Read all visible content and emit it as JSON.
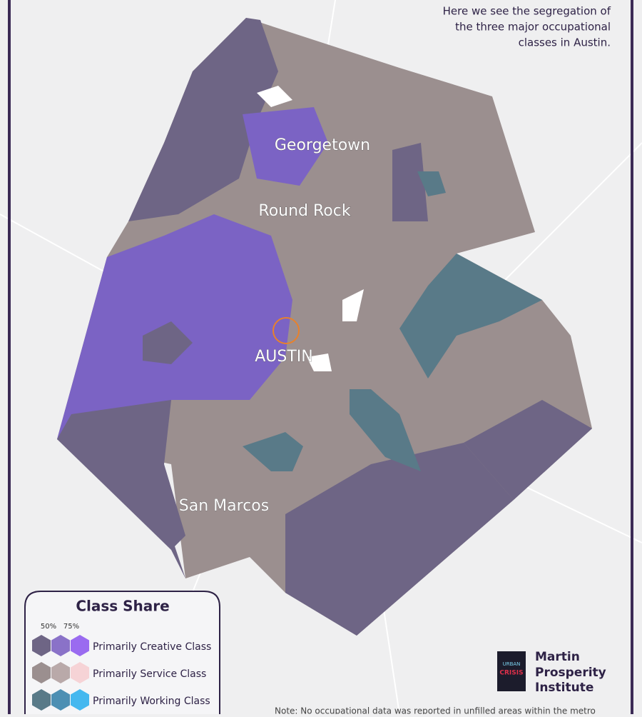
{
  "description": [
    "Here we see the segregation of",
    "the three major occupational",
    "classes in Austin."
  ],
  "cities": [
    "Georgetown",
    "Round Rock",
    "AUSTIN",
    "San Marcos"
  ],
  "legend": {
    "title": "Class Share",
    "thresholds": [
      "50%",
      "75%"
    ],
    "entries": [
      "Primarily Creative Class",
      "Primarily Service Class",
      "Primarily Working Class"
    ]
  },
  "logo": {
    "book": [
      "URBAN",
      "CRISIS"
    ],
    "name": [
      "Martin",
      "Prosperity",
      "Institute"
    ]
  },
  "note": "Note: No occupational data was reported in unfilled areas within the metro"
}
